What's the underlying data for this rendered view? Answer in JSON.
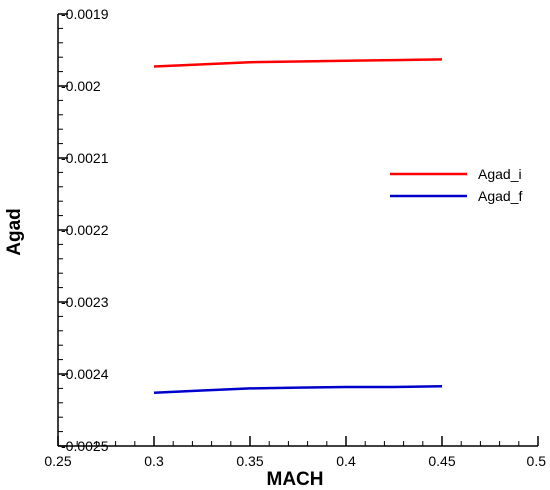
{
  "chart_data": {
    "type": "line",
    "title": "",
    "xlabel": "MACH",
    "ylabel": "Agad",
    "xlim": [
      0.25,
      0.5
    ],
    "ylim": [
      -0.0025,
      -0.0019
    ],
    "x_ticks": [
      0.25,
      0.3,
      0.35,
      0.4,
      0.45,
      0.5
    ],
    "x_tick_labels": [
      "0.25",
      "0.3",
      "0.35",
      "0.4",
      "0.45",
      "0.5"
    ],
    "y_ticks": [
      -0.0019,
      -0.002,
      -0.0021,
      -0.0022,
      -0.0023,
      -0.0024,
      -0.0025
    ],
    "y_tick_labels": [
      "-0.0019",
      "-0.002",
      "-0.0021",
      "-0.0022",
      "-0.0023",
      "-0.0024",
      "-0.0025"
    ],
    "grid": false,
    "legend_position": "right",
    "series": [
      {
        "name": "Agad_i",
        "color": "#ff0000",
        "x": [
          0.3,
          0.325,
          0.35,
          0.375,
          0.4,
          0.425,
          0.45
        ],
        "y": [
          -0.001973,
          -0.00197,
          -0.001967,
          -0.001966,
          -0.001965,
          -0.001964,
          -0.001963
        ]
      },
      {
        "name": "Agad_f",
        "color": "#0000cc",
        "x": [
          0.3,
          0.325,
          0.35,
          0.375,
          0.4,
          0.425,
          0.45
        ],
        "y": [
          -0.002426,
          -0.002423,
          -0.00242,
          -0.002419,
          -0.002418,
          -0.002418,
          -0.002417
        ]
      }
    ]
  }
}
